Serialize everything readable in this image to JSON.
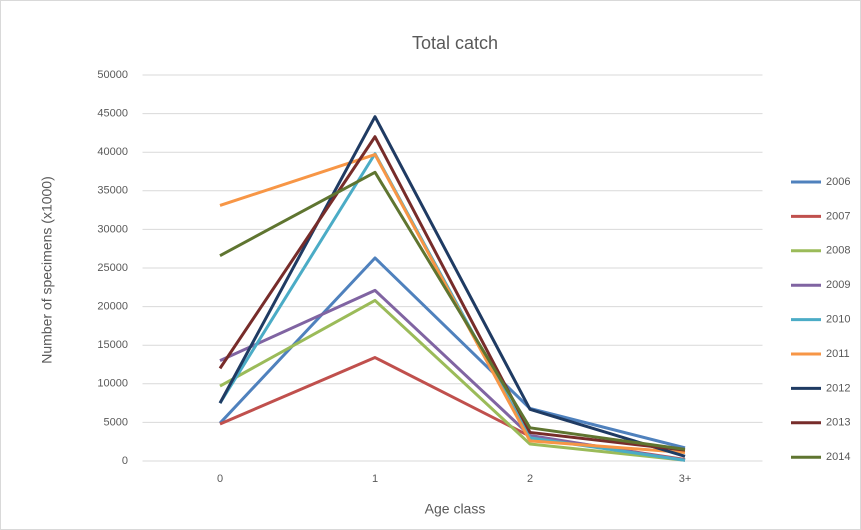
{
  "chart_data": {
    "type": "line",
    "title": "Total catch",
    "x_label": "Age class",
    "y_label": "Number of specimens (x1000)",
    "categories": [
      "0",
      "1",
      "2",
      "3+"
    ],
    "ylim": [
      0,
      50000
    ],
    "yticks": [
      0,
      5000,
      10000,
      15000,
      20000,
      25000,
      30000,
      35000,
      40000,
      45000,
      50000
    ],
    "grid": true,
    "legend": "right",
    "series": [
      {
        "name": "2006",
        "color": "#4f81bd",
        "values": [
          4900,
          26300,
          6800,
          1700
        ]
      },
      {
        "name": "2007",
        "color": "#c0504d",
        "values": [
          4800,
          13400,
          3200,
          200
        ]
      },
      {
        "name": "2008",
        "color": "#9bbb59",
        "values": [
          9700,
          20800,
          2200,
          100
        ]
      },
      {
        "name": "2009",
        "color": "#8064a2",
        "values": [
          13000,
          22100,
          3300,
          100
        ]
      },
      {
        "name": "2010",
        "color": "#4bacc6",
        "values": [
          7500,
          39800,
          3000,
          100
        ]
      },
      {
        "name": "2011",
        "color": "#f79646",
        "values": [
          33100,
          39700,
          2600,
          1100
        ]
      },
      {
        "name": "2012",
        "color": "#1f3b63",
        "values": [
          7500,
          44600,
          6700,
          600
        ]
      },
      {
        "name": "2013",
        "color": "#772c2a",
        "values": [
          12000,
          42000,
          3700,
          1400
        ]
      },
      {
        "name": "2014",
        "color": "#5f7530",
        "values": [
          26600,
          37400,
          4300,
          1500
        ]
      }
    ]
  }
}
